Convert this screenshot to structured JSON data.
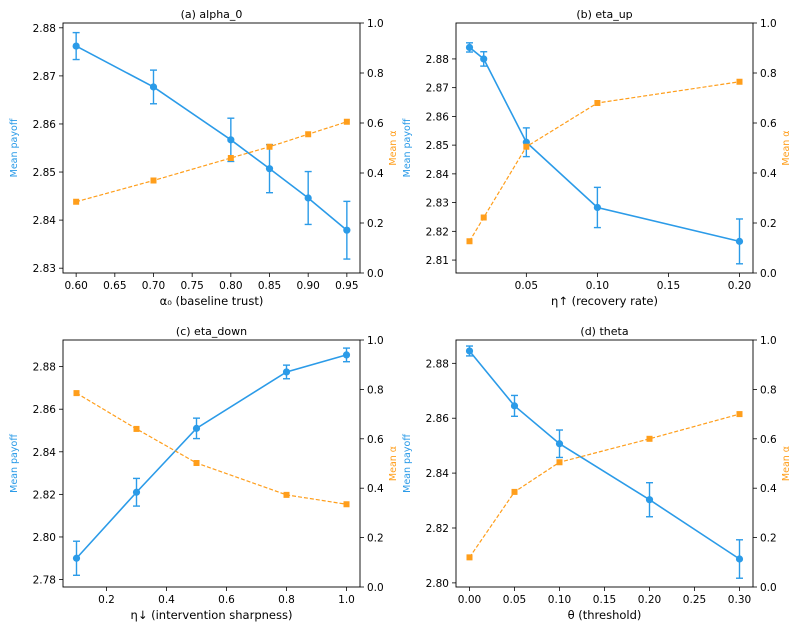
{
  "chart_data": [
    {
      "type": "line",
      "title": "(a) alpha_0",
      "xlabel": "α₀ (baseline trust)",
      "ylabel_left": "Mean payoff",
      "ylabel_right": "Mean α",
      "x": [
        0.6,
        0.7,
        0.8,
        0.85,
        0.9,
        0.95
      ],
      "xlim": [
        0.583,
        0.967
      ],
      "xticks": [
        0.6,
        0.65,
        0.7,
        0.75,
        0.8,
        0.85,
        0.9,
        0.95
      ],
      "xtick_labels": [
        "0.60",
        "0.65",
        "0.70",
        "0.75",
        "0.80",
        "0.85",
        "0.90",
        "0.95"
      ],
      "ylim_left": [
        2.829,
        2.881
      ],
      "yticks_left": [
        2.83,
        2.84,
        2.85,
        2.86,
        2.87,
        2.88
      ],
      "ytick_labels_left": [
        "2.83",
        "2.84",
        "2.85",
        "2.86",
        "2.87",
        "2.88"
      ],
      "ylim_right": [
        0,
        1.0
      ],
      "yticks_right": [
        0,
        0.2,
        0.4,
        0.6,
        0.8,
        1.0
      ],
      "ytick_labels_right": [
        "0.0",
        "0.2",
        "0.4",
        "0.6",
        "0.8",
        "1.0"
      ],
      "series": [
        {
          "name": "Mean payoff",
          "axis": "left",
          "style": "solid",
          "marker": "circle",
          "color": "#2b9be8",
          "values": [
            2.8762,
            2.8677,
            2.8567,
            2.8507,
            2.8446,
            2.8379
          ],
          "errors": [
            0.0028,
            0.0035,
            0.0045,
            0.005,
            0.0055,
            0.006
          ]
        },
        {
          "name": "Mean α",
          "axis": "right",
          "style": "dashed",
          "marker": "square",
          "color": "#ff9e1b",
          "values": [
            0.285,
            0.37,
            0.46,
            0.505,
            0.555,
            0.605
          ]
        }
      ]
    },
    {
      "type": "line",
      "title": "(b) eta_up",
      "xlabel": "η↑ (recovery rate)",
      "ylabel_left": "Mean payoff",
      "ylabel_right": "Mean α",
      "x": [
        0.01,
        0.02,
        0.05,
        0.1,
        0.2
      ],
      "xlim": [
        0.0005,
        0.2095
      ],
      "xticks": [
        0.05,
        0.1,
        0.15,
        0.2
      ],
      "xtick_labels": [
        "0.05",
        "0.10",
        "0.15",
        "0.20"
      ],
      "ylim_left": [
        2.8055,
        2.8925
      ],
      "yticks_left": [
        2.81,
        2.82,
        2.83,
        2.84,
        2.85,
        2.86,
        2.87,
        2.88
      ],
      "ytick_labels_left": [
        "2.81",
        "2.82",
        "2.83",
        "2.84",
        "2.85",
        "2.86",
        "2.87",
        "2.88"
      ],
      "ylim_right": [
        0,
        1.0
      ],
      "yticks_right": [
        0,
        0.2,
        0.4,
        0.6,
        0.8,
        1.0
      ],
      "ytick_labels_right": [
        "0.0",
        "0.2",
        "0.4",
        "0.6",
        "0.8",
        "1.0"
      ],
      "series": [
        {
          "name": "Mean payoff",
          "axis": "left",
          "style": "solid",
          "marker": "circle",
          "color": "#2b9be8",
          "values": [
            2.884,
            2.88,
            2.851,
            2.8283,
            2.8165
          ],
          "errors": [
            0.0016,
            0.0025,
            0.005,
            0.007,
            0.0078
          ]
        },
        {
          "name": "Mean α",
          "axis": "right",
          "style": "dashed",
          "marker": "square",
          "color": "#ff9e1b",
          "values": [
            0.127,
            0.222,
            0.505,
            0.68,
            0.765
          ]
        }
      ]
    },
    {
      "type": "line",
      "title": "(c) eta_down",
      "xlabel": "η↓ (intervention sharpness)",
      "ylabel_left": "Mean payoff",
      "ylabel_right": "Mean α",
      "x": [
        0.1,
        0.3,
        0.5,
        0.8,
        1.0
      ],
      "xlim": [
        0.055,
        1.045
      ],
      "xticks": [
        0.2,
        0.4,
        0.6,
        0.8,
        1.0
      ],
      "xtick_labels": [
        "0.2",
        "0.4",
        "0.6",
        "0.8",
        "1.0"
      ],
      "ylim_left": [
        2.7765,
        2.8925
      ],
      "yticks_left": [
        2.78,
        2.8,
        2.82,
        2.84,
        2.86,
        2.88
      ],
      "ytick_labels_left": [
        "2.78",
        "2.80",
        "2.82",
        "2.84",
        "2.86",
        "2.88"
      ],
      "ylim_right": [
        0,
        1.0
      ],
      "yticks_right": [
        0,
        0.2,
        0.4,
        0.6,
        0.8,
        1.0
      ],
      "ytick_labels_right": [
        "0.0",
        "0.2",
        "0.4",
        "0.6",
        "0.8",
        "1.0"
      ],
      "series": [
        {
          "name": "Mean payoff",
          "axis": "left",
          "style": "solid",
          "marker": "circle",
          "color": "#2b9be8",
          "values": [
            2.79,
            2.821,
            2.851,
            2.8775,
            2.8855
          ],
          "errors": [
            0.008,
            0.0065,
            0.0048,
            0.0032,
            0.0032
          ]
        },
        {
          "name": "Mean α",
          "axis": "right",
          "style": "dashed",
          "marker": "square",
          "color": "#ff9e1b",
          "values": [
            0.785,
            0.64,
            0.502,
            0.373,
            0.335
          ]
        }
      ]
    },
    {
      "type": "line",
      "title": "(d) theta",
      "xlabel": "θ (threshold)",
      "ylabel_left": "Mean payoff",
      "ylabel_right": "Mean α",
      "x": [
        0.0,
        0.05,
        0.1,
        0.2,
        0.3
      ],
      "xlim": [
        -0.015,
        0.315
      ],
      "xticks": [
        0.0,
        0.05,
        0.1,
        0.15,
        0.2,
        0.25,
        0.3
      ],
      "xtick_labels": [
        "0.00",
        "0.05",
        "0.10",
        "0.15",
        "0.20",
        "0.25",
        "0.30"
      ],
      "ylim_left": [
        2.7985,
        2.8885
      ],
      "yticks_left": [
        2.8,
        2.82,
        2.84,
        2.86,
        2.88
      ],
      "ytick_labels_left": [
        "2.80",
        "2.82",
        "2.84",
        "2.86",
        "2.88"
      ],
      "ylim_right": [
        0,
        1.0
      ],
      "yticks_right": [
        0,
        0.2,
        0.4,
        0.6,
        0.8,
        1.0
      ],
      "ytick_labels_right": [
        "0.0",
        "0.2",
        "0.4",
        "0.6",
        "0.8",
        "1.0"
      ],
      "series": [
        {
          "name": "Mean payoff",
          "axis": "left",
          "style": "solid",
          "marker": "circle",
          "color": "#2b9be8",
          "values": [
            2.8845,
            2.8645,
            2.8507,
            2.8303,
            2.8087
          ],
          "errors": [
            0.0018,
            0.0038,
            0.005,
            0.0062,
            0.007
          ]
        },
        {
          "name": "Mean α",
          "axis": "right",
          "style": "dashed",
          "marker": "square",
          "color": "#ff9e1b",
          "values": [
            0.12,
            0.385,
            0.505,
            0.6,
            0.7
          ]
        }
      ]
    }
  ]
}
